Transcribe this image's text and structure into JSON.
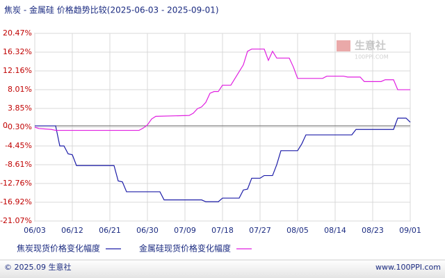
{
  "chart_data": {
    "type": "line",
    "title": "焦炭 - 金属硅 价格趋势比较(2025-06-03 - 2025-09-01)",
    "xlim": [
      "2025-06-03",
      "2025-09-01"
    ],
    "xticks": [
      {
        "value": "2025-06-03",
        "label": "06/03"
      },
      {
        "value": "2025-06-12",
        "label": "06/12"
      },
      {
        "value": "2025-06-21",
        "label": "06/21"
      },
      {
        "value": "2025-06-30",
        "label": "06/30"
      },
      {
        "value": "2025-07-09",
        "label": "07/09"
      },
      {
        "value": "2025-07-18",
        "label": "07/18"
      },
      {
        "value": "2025-07-27",
        "label": "07/27"
      },
      {
        "value": "2025-08-05",
        "label": "08/05"
      },
      {
        "value": "2025-08-14",
        "label": "08/14"
      },
      {
        "value": "2025-08-23",
        "label": "08/23"
      },
      {
        "value": "2025-09-01",
        "label": "09/01"
      }
    ],
    "ylim": [
      -21.07,
      20.47
    ],
    "yticks": [
      {
        "value": 20.47,
        "label": "20.47%"
      },
      {
        "value": 16.32,
        "label": "16.32%"
      },
      {
        "value": 12.16,
        "label": "12.16%"
      },
      {
        "value": 8.01,
        "label": "8.01%"
      },
      {
        "value": 3.85,
        "label": "3.85%"
      },
      {
        "value": -0.3,
        "label": "-0.30%"
      },
      {
        "value": -4.45,
        "label": "-4.45%"
      },
      {
        "value": -8.61,
        "label": "-8.61%"
      },
      {
        "value": -12.76,
        "label": "-12.76%"
      },
      {
        "value": -16.92,
        "label": "-16.92%"
      },
      {
        "value": -21.07,
        "label": "-21.07%"
      }
    ],
    "zero_line": {
      "value": 0,
      "label": "0"
    },
    "grid": true,
    "series": [
      {
        "name": "焦炭现货价格变化幅度",
        "color": "#1c1ca8",
        "x": [
          "2025-06-03",
          "2025-06-08",
          "2025-06-09",
          "2025-06-10",
          "2025-06-11",
          "2025-06-12",
          "2025-06-13",
          "2025-06-22",
          "2025-06-23",
          "2025-06-24",
          "2025-06-25",
          "2025-07-03",
          "2025-07-04",
          "2025-07-13",
          "2025-07-14",
          "2025-07-17",
          "2025-07-18",
          "2025-07-22",
          "2025-07-23",
          "2025-07-24",
          "2025-07-25",
          "2025-07-27",
          "2025-07-28",
          "2025-07-30",
          "2025-07-31",
          "2025-08-01",
          "2025-08-05",
          "2025-08-06",
          "2025-08-07",
          "2025-08-18",
          "2025-08-19",
          "2025-08-28",
          "2025-08-29",
          "2025-08-31",
          "2025-09-01"
        ],
        "values": [
          0,
          0,
          -4.45,
          -4.45,
          -6.2,
          -6.4,
          -8.8,
          -8.8,
          -12.2,
          -12.4,
          -14.6,
          -14.6,
          -16.4,
          -16.4,
          -16.8,
          -16.8,
          -16.0,
          -16.0,
          -14.2,
          -14.0,
          -11.6,
          -11.6,
          -11.0,
          -11.0,
          -8.6,
          -5.5,
          -5.5,
          -4.0,
          -2.0,
          -2.0,
          -0.8,
          -0.8,
          1.7,
          1.7,
          0.8
        ]
      },
      {
        "name": "金属硅现货价格变化幅度",
        "color": "#e01ee0",
        "x": [
          "2025-06-03",
          "2025-06-04",
          "2025-06-07",
          "2025-06-08",
          "2025-06-28",
          "2025-06-29",
          "2025-06-30",
          "2025-07-01",
          "2025-07-02",
          "2025-07-10",
          "2025-07-11",
          "2025-07-12",
          "2025-07-13",
          "2025-07-14",
          "2025-07-15",
          "2025-07-16",
          "2025-07-17",
          "2025-07-18",
          "2025-07-20",
          "2025-07-21",
          "2025-07-23",
          "2025-07-24",
          "2025-07-25",
          "2025-07-28",
          "2025-07-29",
          "2025-07-30",
          "2025-07-31",
          "2025-08-03",
          "2025-08-04",
          "2025-08-05",
          "2025-08-11",
          "2025-08-12",
          "2025-08-16",
          "2025-08-17",
          "2025-08-20",
          "2025-08-21",
          "2025-08-25",
          "2025-08-26",
          "2025-08-28",
          "2025-08-29",
          "2025-09-01"
        ],
        "values": [
          -0.3,
          -0.6,
          -0.8,
          -1.0,
          -1.0,
          -0.5,
          0.2,
          1.5,
          2.1,
          2.3,
          2.8,
          3.8,
          4.2,
          5.2,
          7.2,
          7.6,
          7.6,
          9.0,
          9.0,
          10.5,
          13.5,
          16.5,
          17.0,
          17.0,
          14.5,
          16.5,
          15.0,
          15.0,
          13.0,
          10.5,
          10.5,
          11.0,
          11.0,
          10.8,
          10.8,
          9.8,
          9.8,
          10.2,
          10.2,
          8.0,
          8.0
        ]
      }
    ],
    "watermark": {
      "name": "生意社",
      "site": "100PPI.COM"
    },
    "footer": {
      "copyright": "© 2025.09 生意社",
      "site": "www.100PPI.com"
    }
  }
}
